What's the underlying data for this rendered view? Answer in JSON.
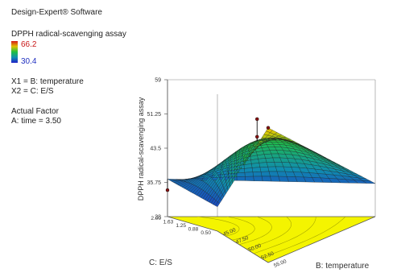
{
  "software": "Design-Expert® Software",
  "response": {
    "name": "DPPH radical-scavenging assay",
    "legend_max": "66.2",
    "legend_min": "30.4",
    "colors": {
      "high": "#d61818",
      "mid": "#e0c000",
      "low": "#2020c8",
      "contour_plane": "#f4f400"
    }
  },
  "factors": {
    "x1": "X1 = B: temperature",
    "x2": "X2 = C: E/S",
    "actual_title": "Actual Factor",
    "actual_value": "A: time  = 3.50"
  },
  "chart_data": {
    "type": "surface3d",
    "z_label": "DPPH radical-scavenging assay",
    "x_label": "B: temperature",
    "y_label": "C: E/S",
    "z_ticks": [
      "28",
      "35.75",
      "43.5",
      "51.25",
      "59"
    ],
    "x_ticks": [
      "45.00",
      "47.50",
      "50.00",
      "52.50",
      "55.00"
    ],
    "y_ticks": [
      "0.50",
      "0.88",
      "1.25",
      "1.63",
      "2.00"
    ],
    "z_range": [
      28,
      59
    ],
    "x_range": [
      45,
      55
    ],
    "y_range": [
      0.5,
      2.0
    ],
    "surface_corners": [
      {
        "x": 45,
        "y": 2.0,
        "z": 36.5
      },
      {
        "x": 55,
        "y": 2.0,
        "z": 35.5
      },
      {
        "x": 45,
        "y": 0.5,
        "z": 33.5
      },
      {
        "x": 55,
        "y": 0.5,
        "z": 58.5
      }
    ],
    "design_points": [
      {
        "x": 55,
        "y": 0.5,
        "z": 58.5
      },
      {
        "x": 50,
        "y": 1.25,
        "z": 53.5
      },
      {
        "x": 50,
        "y": 1.25,
        "z": 49.5
      },
      {
        "x": 45,
        "y": 2.0,
        "z": 34.0
      }
    ]
  }
}
